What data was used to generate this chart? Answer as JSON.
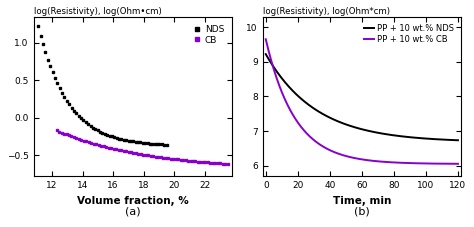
{
  "panel_a": {
    "title": "log(Resistivity), log(Ohm•cm)",
    "xlabel": "Volume fraction, %",
    "xlim": [
      10.8,
      23.8
    ],
    "ylim": [
      -0.78,
      1.35
    ],
    "yticks": [
      -0.5,
      0.0,
      0.5,
      1.0
    ],
    "xticks": [
      12,
      14,
      16,
      18,
      20,
      22
    ],
    "nds_x_start": 11.1,
    "nds_x_end": 19.5,
    "nds_y_start": 1.22,
    "nds_y_end": -0.38,
    "nds_k": 0.52,
    "cb_x_start": 12.3,
    "cb_x_end": 23.5,
    "cb_y_start": -0.17,
    "cb_y_end": -0.7,
    "cb_k": 0.165,
    "nds_color": "#000000",
    "cb_color": "#8800CC",
    "label_a": "(a)"
  },
  "panel_b": {
    "title": "log(Resistivity), log(Ohm*cm)",
    "xlabel": "Time, min",
    "xlim": [
      -2,
      122
    ],
    "ylim": [
      5.7,
      10.3
    ],
    "yticks": [
      6,
      7,
      8,
      9,
      10
    ],
    "xticks": [
      0,
      20,
      40,
      60,
      80,
      100,
      120
    ],
    "nds_y_start": 9.22,
    "nds_y_end": 6.68,
    "nds_k": 0.032,
    "cb_y_start": 9.65,
    "cb_y_end": 6.05,
    "cb_k": 0.055,
    "nds_color": "#000000",
    "cb_color": "#8800CC",
    "label_b": "(b)"
  }
}
